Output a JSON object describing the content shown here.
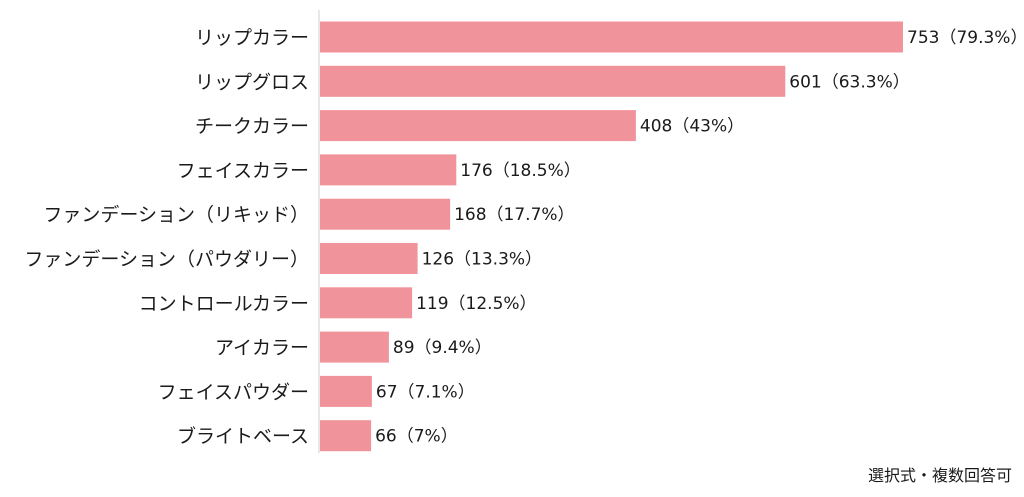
{
  "chart_data": {
    "type": "bar",
    "orientation": "horizontal",
    "categories": [
      "リップカラー",
      "リップグロス",
      "チークカラー",
      "フェイスカラー",
      "ファンデーション（リキッド）",
      "ファンデーション（パウダリー）",
      "コントロールカラー",
      "アイカラー",
      "フェイスパウダー",
      "ブライトベース"
    ],
    "values": [
      753,
      601,
      408,
      176,
      168,
      126,
      119,
      89,
      67,
      66
    ],
    "value_labels": [
      "753（79.3%）",
      "601（63.3%）",
      "408（43%）",
      "176（18.5%）",
      "168（17.7%）",
      "126（13.3%）",
      "119（12.5%）",
      "89（9.4%）",
      "67（7.1%）",
      "66（7%）"
    ],
    "bar_color": "#f0939a",
    "note": "選択式・複数回答可"
  }
}
